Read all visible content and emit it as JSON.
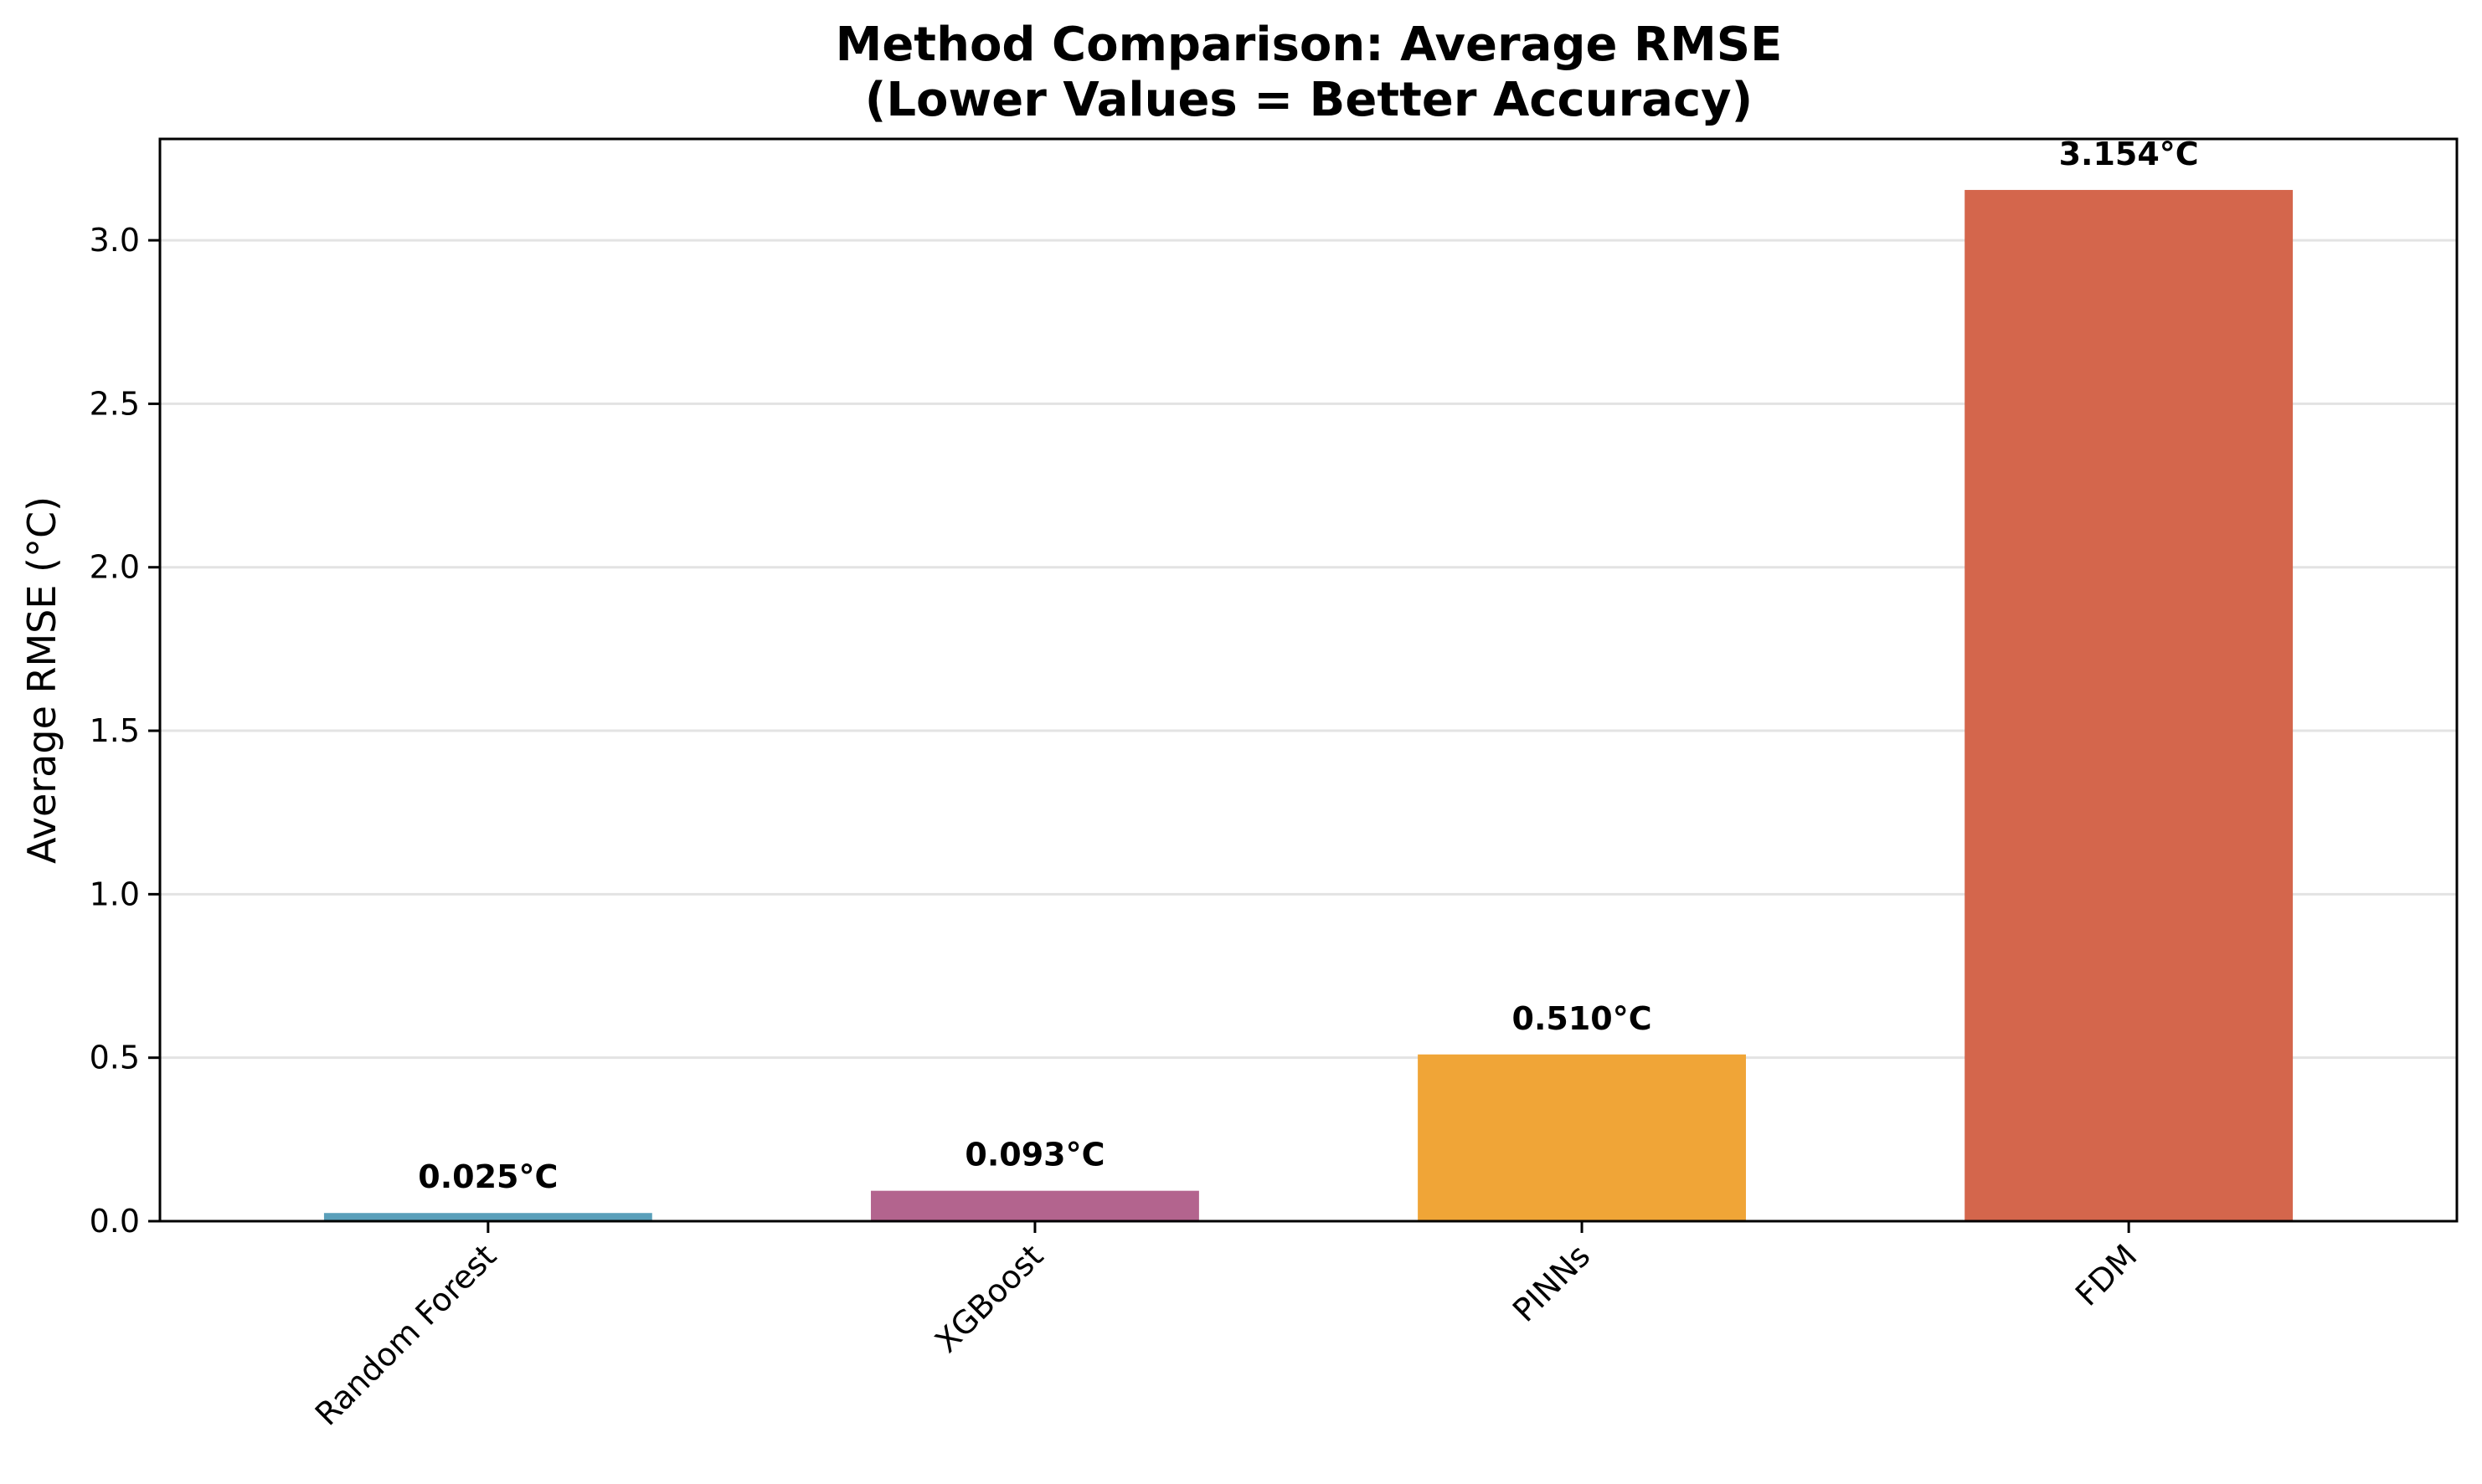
{
  "chart_data": {
    "type": "bar",
    "title": "Method Comparison: Average RMSE",
    "subtitle": "(Lower Values = Better Accuracy)",
    "xlabel": "",
    "ylabel": "Average RMSE (°C)",
    "categories": [
      "Random Forest",
      "XGBoost",
      "PINNs",
      "FDM"
    ],
    "values": [
      0.025,
      0.093,
      0.51,
      3.154
    ],
    "value_labels": [
      "0.025°C",
      "0.093°C",
      "0.510°C",
      "3.154°C"
    ],
    "colors": [
      "#5a9fba",
      "#b3648e",
      "#f0a537",
      "#d4664c"
    ],
    "ylim": [
      0,
      3.31
    ],
    "yticks": [
      0.0,
      0.5,
      1.0,
      1.5,
      2.0,
      2.5,
      3.0
    ],
    "ytick_labels": [
      "0.0",
      "0.5",
      "1.0",
      "1.5",
      "2.0",
      "2.5",
      "3.0"
    ],
    "grid": "y-major",
    "legend": "none"
  }
}
